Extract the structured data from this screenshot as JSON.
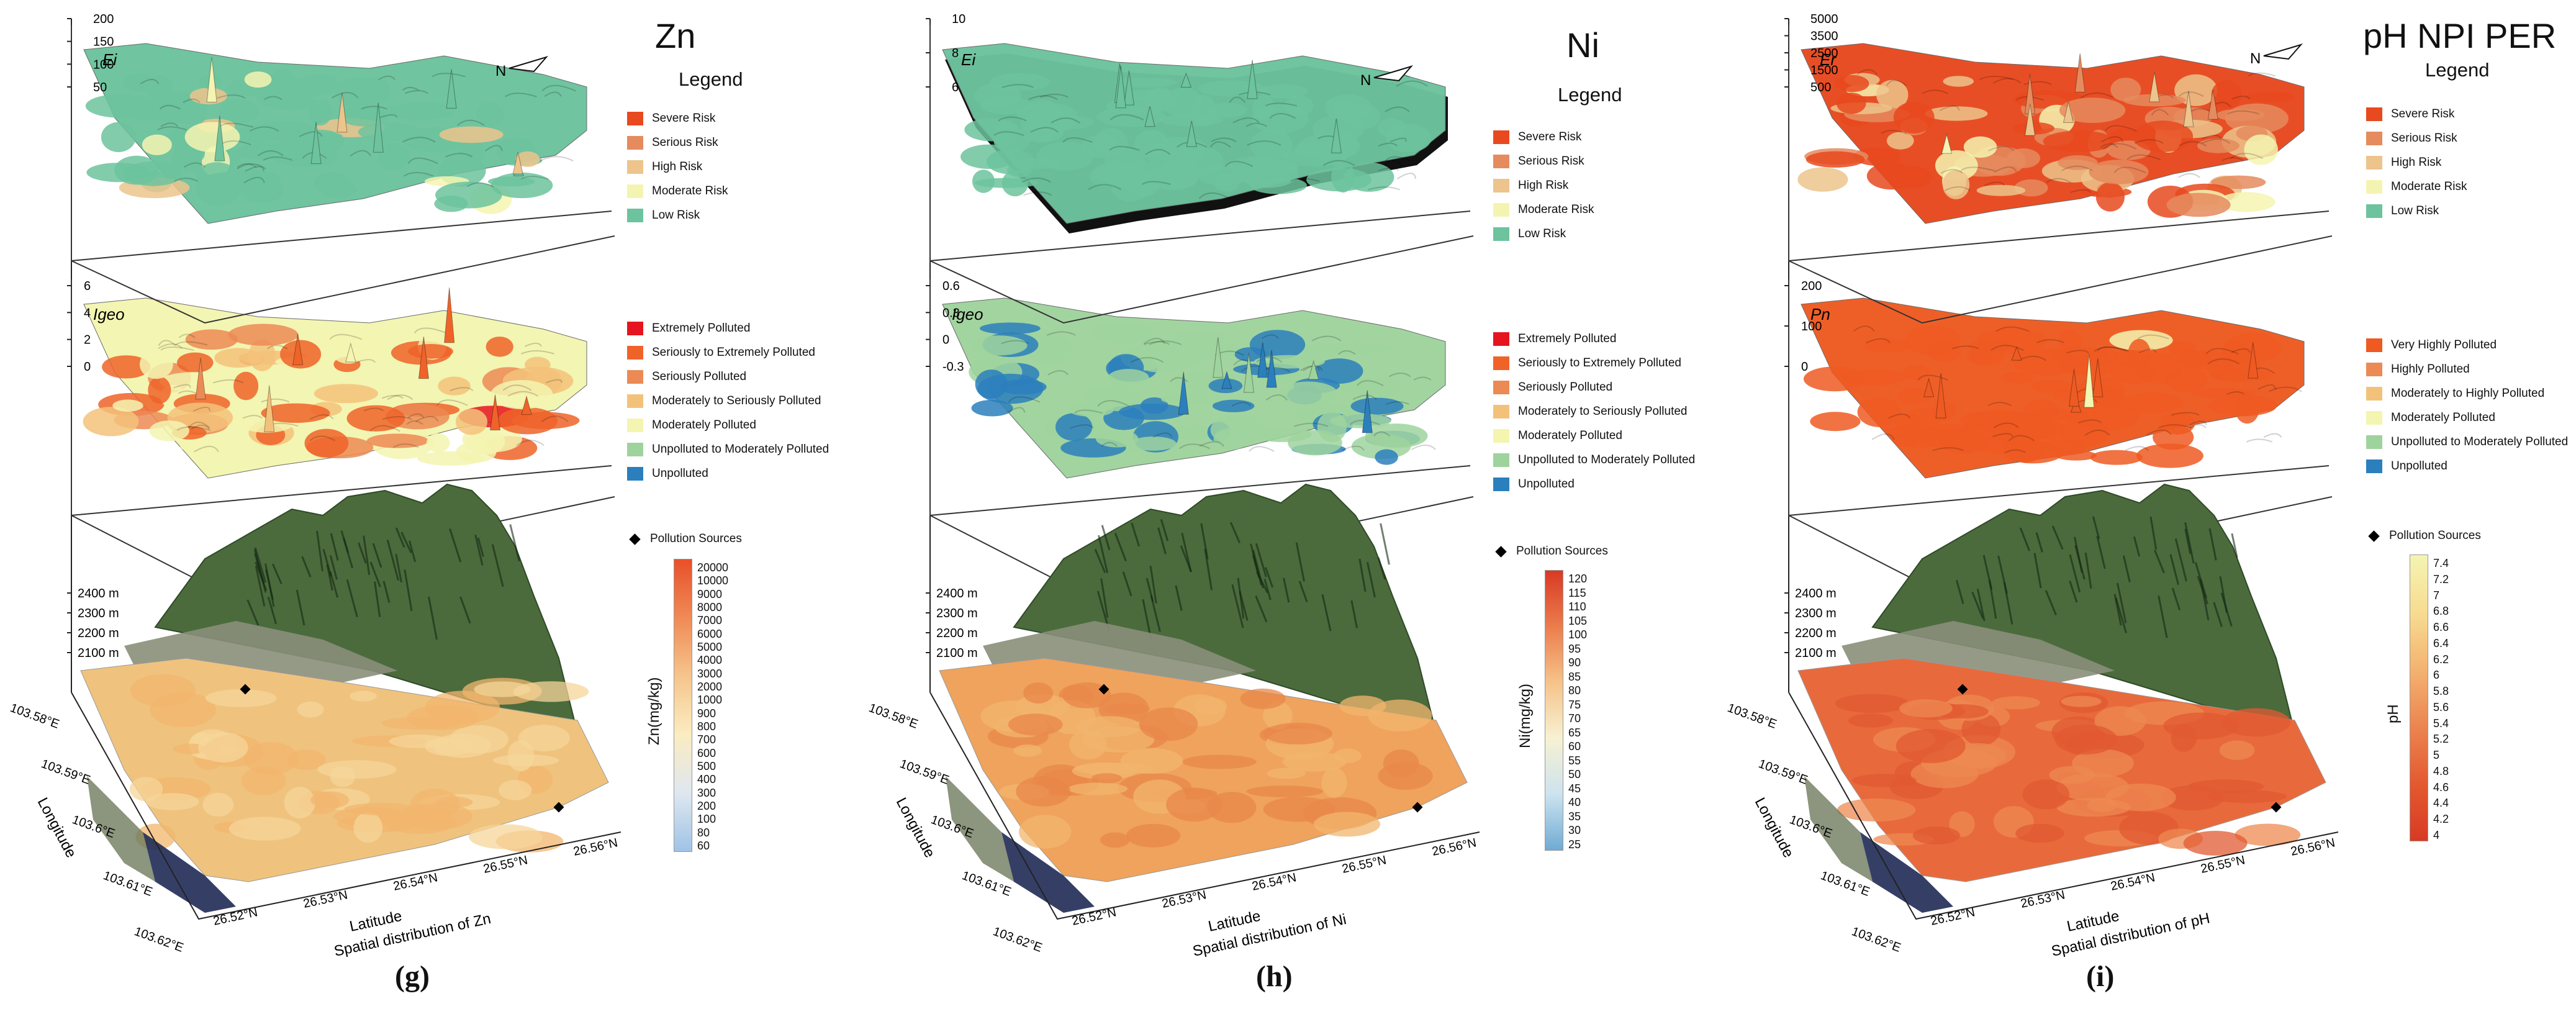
{
  "palettes": {
    "risk": [
      "#e8491e",
      "#e58b5e",
      "#ecc48c",
      "#f4f4b2",
      "#6cc39d"
    ],
    "pollution": [
      "#e6141e",
      "#ef6329",
      "#ec8a55",
      "#f3c27a",
      "#f3f5b0",
      "#9fd39d",
      "#2b7fbc"
    ],
    "pn": [
      "#ee5a22",
      "#ec8a55",
      "#f3c27a",
      "#f3f5b0",
      "#9fd39d",
      "#2b7fbc"
    ]
  },
  "common": {
    "er_risk_labels": [
      "Severe Risk",
      "Serious Risk",
      "High Risk",
      "Moderate Risk",
      "Low Risk"
    ],
    "igeo_labels": [
      "Extremely Polluted",
      "Seriously to Extremely Polluted",
      "Seriously Polluted",
      "Moderately to Seriously Polluted",
      "Moderately Polluted",
      "Unpolluted to Moderately Polluted",
      "Unpolluted"
    ],
    "pn_labels": [
      "Very Highly Polluted",
      "Highly Polluted",
      "Moderately to Highly Polluted",
      "Moderately Polluted",
      "Unpolluted to Moderately Polluted",
      "Unpolluted"
    ],
    "legend_title": "Legend",
    "pollution_sources": "Pollution Sources",
    "elev_ticks": [
      "2400 m",
      "2300 m",
      "2200 m",
      "2100 m"
    ],
    "lon_ticks": [
      "103.58°E",
      "103.59°E",
      "103.6°E",
      "103.61°E",
      "103.62°E"
    ],
    "lat_ticks": [
      "26.52°N",
      "26.53°N",
      "26.54°N",
      "26.55°N",
      "26.56°N"
    ],
    "longitude_label": "Longitude",
    "latitude_label": "Latitude",
    "north_label": "N"
  },
  "panels": [
    {
      "id": "g",
      "letter": "(g)",
      "title": "Zn",
      "top_axis_label": "Ei",
      "top_ticks": [
        "200",
        "150",
        "100",
        "50"
      ],
      "mid_axis_label": "Igeo",
      "mid_ticks": [
        "6",
        "4",
        "2",
        "0"
      ],
      "colorbar_label": "Zn(mg/kg)",
      "colorbar_ticks": [
        "20000",
        "10000",
        "9000",
        "8000",
        "7000",
        "6000",
        "5000",
        "4000",
        "3000",
        "2000",
        "1000",
        "900",
        "800",
        "700",
        "600",
        "500",
        "400",
        "300",
        "200",
        "100",
        "80",
        "60"
      ],
      "colorbar_colors": [
        "#e8502a",
        "#f08a56",
        "#f6c58c",
        "#fbecc1",
        "#dfe7f0",
        "#9fc3e6"
      ],
      "caption": "Spatial distribution of Zn",
      "surface_colors": [
        "#efc37e",
        "#f2b56e",
        "#f5d59a"
      ],
      "top_risk_share": [
        0,
        0,
        0.05,
        0.1,
        0.85
      ],
      "mid_poll_share": [
        0.04,
        0.25,
        0.2,
        0.2,
        0.3,
        0.01,
        0
      ]
    },
    {
      "id": "h",
      "letter": "(h)",
      "title": "Ni",
      "top_axis_label": "Ei",
      "top_ticks": [
        "10",
        "8",
        "6"
      ],
      "mid_axis_label": "Igeo",
      "mid_ticks": [
        "0.6",
        "0.3",
        "0",
        "-0.3"
      ],
      "colorbar_label": "Ni(mg/kg)",
      "colorbar_ticks": [
        "120",
        "115",
        "110",
        "105",
        "100",
        "95",
        "90",
        "85",
        "80",
        "75",
        "70",
        "65",
        "60",
        "55",
        "50",
        "45",
        "40",
        "35",
        "30",
        "25"
      ],
      "colorbar_colors": [
        "#d83a24",
        "#ec7c4c",
        "#f6c38a",
        "#f7f1d2",
        "#cde3ef",
        "#6fabd3"
      ],
      "caption": "Spatial distribution of Ni",
      "surface_colors": [
        "#efa35c",
        "#f2b56e",
        "#e8874a"
      ],
      "top_risk_share": [
        0,
        0,
        0,
        0,
        1
      ],
      "mid_poll_share": [
        0,
        0,
        0,
        0,
        0,
        0.55,
        0.45
      ]
    },
    {
      "id": "i",
      "letter": "(i)",
      "title": "pH  NPI  PER",
      "top_axis_label": "Er",
      "top_ticks": [
        "5000",
        "3500",
        "2500",
        "1500",
        "500"
      ],
      "mid_axis_label": "Pn",
      "mid_ticks": [
        "200",
        "100",
        "0"
      ],
      "colorbar_label": "pH",
      "colorbar_ticks": [
        "7.4",
        "7.2",
        "7",
        "6.8",
        "6.6",
        "6.4",
        "6.2",
        "6",
        "5.8",
        "5.6",
        "5.4",
        "5.2",
        "5",
        "4.8",
        "4.6",
        "4.4",
        "4.2",
        "4"
      ],
      "colorbar_colors": [
        "#f4f4b2",
        "#f7dc92",
        "#f3b370",
        "#ec8550",
        "#e35a30",
        "#d83a24"
      ],
      "caption": "Spatial distribution of pH",
      "surface_colors": [
        "#e86a3c",
        "#ee8a52",
        "#e25a32"
      ],
      "top_risk_share": [
        0.3,
        0.3,
        0.3,
        0.1,
        0
      ],
      "mid_poll_share": [
        0.95,
        0.02,
        0.01,
        0.02,
        0,
        0
      ]
    }
  ]
}
